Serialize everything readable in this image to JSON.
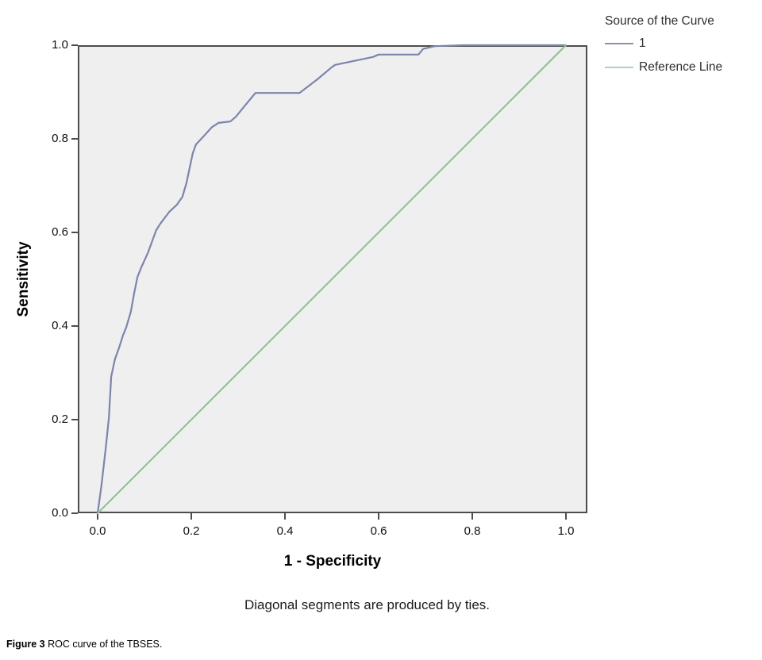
{
  "figure": {
    "note": "Diagonal segments are produced by ties.",
    "caption_label": "Figure 3",
    "caption_text": " ROC curve of the TBSES."
  },
  "chart_data": {
    "type": "line",
    "subtype": "roc-curve",
    "title": "",
    "xlabel": "1 - Specificity",
    "ylabel": "Sensitivity",
    "xlim": [
      0.0,
      1.0
    ],
    "ylim": [
      0.0,
      1.0
    ],
    "grid": false,
    "plot_bg": "#efeff0",
    "frame_color": "#4d4d4d",
    "x_ticks": [
      0.0,
      0.2,
      0.4,
      0.6,
      0.8,
      1.0
    ],
    "y_ticks": [
      0.0,
      0.2,
      0.4,
      0.6,
      0.8,
      1.0
    ],
    "x_tick_labels": [
      "0.0",
      "0.2",
      "0.4",
      "0.6",
      "0.8",
      "1.0"
    ],
    "y_tick_labels": [
      "0.0",
      "0.2",
      "0.4",
      "0.6",
      "0.8",
      "1.0"
    ],
    "legend": {
      "position": "top-right-outside",
      "title": "Source of the Curve",
      "items": [
        {
          "label": "1",
          "swatch_color": "#8a90a8"
        },
        {
          "label": "Reference Line",
          "swatch_color": "#aad5b5"
        }
      ]
    },
    "series": [
      {
        "name": "1",
        "color": "#7d84ab",
        "width": 2.2,
        "points": [
          [
            0.0,
            0.0
          ],
          [
            0.008,
            0.058
          ],
          [
            0.017,
            0.136
          ],
          [
            0.024,
            0.204
          ],
          [
            0.029,
            0.292
          ],
          [
            0.037,
            0.329
          ],
          [
            0.046,
            0.354
          ],
          [
            0.054,
            0.38
          ],
          [
            0.061,
            0.397
          ],
          [
            0.071,
            0.431
          ],
          [
            0.078,
            0.47
          ],
          [
            0.085,
            0.505
          ],
          [
            0.093,
            0.525
          ],
          [
            0.108,
            0.558
          ],
          [
            0.125,
            0.605
          ],
          [
            0.134,
            0.619
          ],
          [
            0.153,
            0.644
          ],
          [
            0.169,
            0.659
          ],
          [
            0.181,
            0.676
          ],
          [
            0.19,
            0.707
          ],
          [
            0.203,
            0.769
          ],
          [
            0.21,
            0.788
          ],
          [
            0.224,
            0.803
          ],
          [
            0.244,
            0.825
          ],
          [
            0.258,
            0.834
          ],
          [
            0.283,
            0.837
          ],
          [
            0.295,
            0.847
          ],
          [
            0.312,
            0.868
          ],
          [
            0.337,
            0.898
          ],
          [
            0.431,
            0.898
          ],
          [
            0.469,
            0.927
          ],
          [
            0.5,
            0.953
          ],
          [
            0.507,
            0.958
          ],
          [
            0.588,
            0.975
          ],
          [
            0.6,
            0.98
          ],
          [
            0.685,
            0.98
          ],
          [
            0.695,
            0.992
          ],
          [
            0.72,
            0.998
          ],
          [
            0.78,
            1.0
          ],
          [
            1.0,
            1.0
          ]
        ]
      },
      {
        "name": "Reference Line",
        "color": "#8cbf8c",
        "width": 2,
        "points": [
          [
            0.0,
            0.0
          ],
          [
            1.0,
            1.0
          ]
        ]
      }
    ]
  }
}
